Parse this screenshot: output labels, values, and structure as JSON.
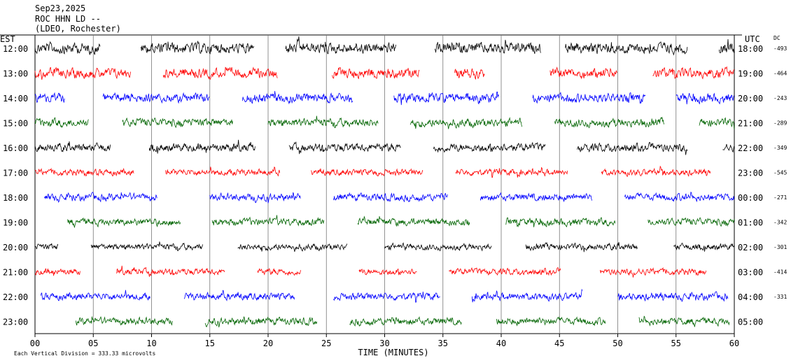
{
  "header": {
    "date": "Sep23,2025",
    "station": "ROC HHN LD --",
    "org": "(LDEO, Rochester)"
  },
  "left_axis_title": "EST",
  "right_axis_title": "UTC",
  "dc_title": "DC",
  "x_axis_title": "TIME (MINUTES)",
  "footer": "Each Vertical Division =  333.33 microvolts",
  "colors": {
    "cycle": [
      "#000000",
      "#ff0000",
      "#0000ff",
      "#006400"
    ]
  },
  "chart_data": {
    "type": "line",
    "title": "",
    "xlabel": "TIME (MINUTES)",
    "xlim": [
      0,
      60
    ],
    "x_ticks": [
      "00",
      "05",
      "10",
      "15",
      "20",
      "25",
      "30",
      "35",
      "40",
      "45",
      "50",
      "55",
      "60"
    ],
    "rows": [
      {
        "est": "12:00",
        "utc": "18:00",
        "dc": "-493",
        "segments": [
          [
            0,
            5.6
          ],
          [
            9.1,
            18.8
          ],
          [
            21.5,
            31
          ],
          [
            34.3,
            43.4
          ],
          [
            45.5,
            56
          ],
          [
            58.7,
            60
          ]
        ],
        "amp": 12
      },
      {
        "est": "13:00",
        "utc": "19:00",
        "dc": "-464",
        "segments": [
          [
            0,
            8.2
          ],
          [
            11,
            20.8
          ],
          [
            25.5,
            33
          ],
          [
            36,
            38.6
          ],
          [
            44.2,
            50
          ],
          [
            53,
            60
          ]
        ],
        "amp": 11
      },
      {
        "est": "14:00",
        "utc": "20:00",
        "dc": "-243",
        "segments": [
          [
            0,
            2.6
          ],
          [
            5.8,
            15
          ],
          [
            17.8,
            27.3
          ],
          [
            30.8,
            39.8
          ],
          [
            42.7,
            52.4
          ],
          [
            55,
            60
          ]
        ],
        "amp": 10
      },
      {
        "est": "15:00",
        "utc": "21:00",
        "dc": "-289",
        "segments": [
          [
            0,
            4.6
          ],
          [
            7.5,
            17
          ],
          [
            20,
            29.5
          ],
          [
            32.2,
            41.8
          ],
          [
            44.6,
            54
          ],
          [
            57,
            60
          ]
        ],
        "amp": 9
      },
      {
        "est": "16:00",
        "utc": "22:00",
        "dc": "-349",
        "segments": [
          [
            0,
            6.5
          ],
          [
            9.8,
            18.9
          ],
          [
            21.8,
            31.4
          ],
          [
            34.2,
            43.8
          ],
          [
            46.5,
            56
          ],
          [
            59,
            60
          ]
        ],
        "amp": 9
      },
      {
        "est": "17:00",
        "utc": "23:00",
        "dc": "-545",
        "segments": [
          [
            0,
            8.5
          ],
          [
            11.2,
            21
          ],
          [
            23.7,
            33.3
          ],
          [
            36.1,
            45.7
          ],
          [
            48.6,
            58
          ]
        ],
        "amp": 7
      },
      {
        "est": "18:00",
        "utc": "00:00",
        "dc": "-271",
        "segments": [
          [
            0.8,
            10.5
          ],
          [
            15,
            22.8
          ],
          [
            25.6,
            35.4
          ],
          [
            38.2,
            47.8
          ],
          [
            50.6,
            60
          ]
        ],
        "amp": 8
      },
      {
        "est": "19:00",
        "utc": "01:00",
        "dc": "-342",
        "segments": [
          [
            2.8,
            12.5
          ],
          [
            15.2,
            24.8
          ],
          [
            27.7,
            37.3
          ],
          [
            40.4,
            49.8
          ],
          [
            52.6,
            60
          ]
        ],
        "amp": 8
      },
      {
        "est": "20:00",
        "utc": "02:00",
        "dc": "-301",
        "segments": [
          [
            0,
            2
          ],
          [
            4.8,
            14.4
          ],
          [
            17.4,
            26.8
          ],
          [
            30,
            39.2
          ],
          [
            42.1,
            51.7
          ],
          [
            54.8,
            60
          ]
        ],
        "amp": 7
      },
      {
        "est": "21:00",
        "utc": "03:00",
        "dc": "-414",
        "segments": [
          [
            0,
            3.9
          ],
          [
            7,
            16.3
          ],
          [
            19.1,
            22.8
          ],
          [
            27.8,
            32.8
          ],
          [
            35.5,
            45.1
          ],
          [
            48.5,
            57.6
          ]
        ],
        "amp": 7
      },
      {
        "est": "22:00",
        "utc": "04:00",
        "dc": "-331",
        "segments": [
          [
            0.5,
            9.9
          ],
          [
            12.8,
            22.3
          ],
          [
            25.6,
            34.8
          ],
          [
            37.5,
            47
          ],
          [
            50,
            59.5
          ]
        ],
        "amp": 8
      },
      {
        "est": "23:00",
        "utc": "05:00",
        "dc": "",
        "segments": [
          [
            3.5,
            11.8
          ],
          [
            14.6,
            24.2
          ],
          [
            27,
            36.6
          ],
          [
            39.6,
            49
          ],
          [
            51.8,
            59.6
          ]
        ],
        "amp": 8
      }
    ]
  }
}
